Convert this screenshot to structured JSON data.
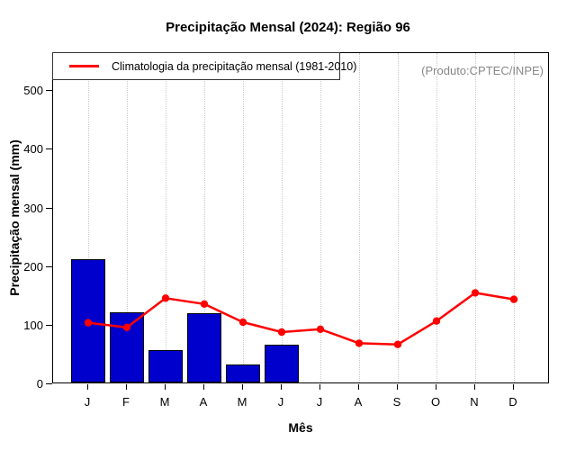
{
  "chart_data": {
    "type": "bar",
    "title": "Precipitação Mensal (2024): Região 96",
    "xlabel": "Mês",
    "ylabel": "Precipitação mensal (mm)",
    "categories": [
      "J",
      "F",
      "M",
      "A",
      "M",
      "J",
      "J",
      "A",
      "S",
      "O",
      "N",
      "D"
    ],
    "bar_series": {
      "name": "Precipitação mensal 2024",
      "values": [
        210,
        120,
        56,
        118,
        31,
        65,
        0,
        0,
        0,
        0,
        0,
        0
      ]
    },
    "line_series": {
      "name": "Climatologia da precipitação mensal (1981-2010)",
      "values": [
        105,
        97,
        147,
        137,
        106,
        89,
        94,
        70,
        68,
        108,
        156,
        145
      ]
    },
    "ylim": [
      0,
      565
    ],
    "yticks": [
      0,
      100,
      200,
      300,
      400,
      500
    ],
    "grid": "vertical-dotted",
    "legend_position": "top-left",
    "annotation": "(Produto:CPTEC/INPE)",
    "colors": {
      "bar": "#0000CC",
      "bar_border": "#000000",
      "line": "#FF0000",
      "annotation_text": "#888888",
      "gridline": "#c9c9c9"
    }
  }
}
